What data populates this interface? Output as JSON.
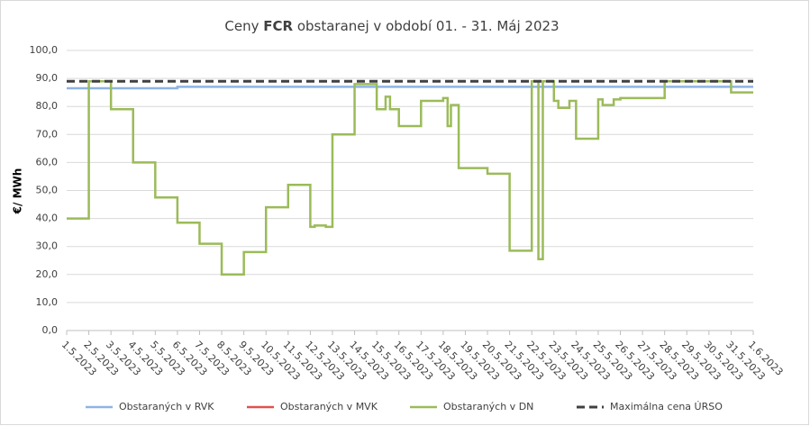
{
  "chart_data": {
    "type": "line",
    "title": [
      "Ceny ",
      "FCR",
      " obstaranej v období 01. - 31. Máj 2023"
    ],
    "ylabel": "€/ MWh",
    "xlim": [
      0,
      31
    ],
    "xticks": [
      {
        "value": 0,
        "label": "1.5.2023"
      },
      {
        "value": 1,
        "label": "2.5.2023"
      },
      {
        "value": 2,
        "label": "3.5.2023"
      },
      {
        "value": 3,
        "label": "4.5.2023"
      },
      {
        "value": 4,
        "label": "5.5.2023"
      },
      {
        "value": 5,
        "label": "6.5.2023"
      },
      {
        "value": 6,
        "label": "7.5.2023"
      },
      {
        "value": 7,
        "label": "8.5.2023"
      },
      {
        "value": 8,
        "label": "9.5.2023"
      },
      {
        "value": 9,
        "label": "10.5.2023"
      },
      {
        "value": 10,
        "label": "11.5.2023"
      },
      {
        "value": 11,
        "label": "12.5.2023"
      },
      {
        "value": 12,
        "label": "13.5.2023"
      },
      {
        "value": 13,
        "label": "14.5.2023"
      },
      {
        "value": 14,
        "label": "15.5.2023"
      },
      {
        "value": 15,
        "label": "16.5.2023"
      },
      {
        "value": 16,
        "label": "17.5.2023"
      },
      {
        "value": 17,
        "label": "18.5.2023"
      },
      {
        "value": 18,
        "label": "19.5.2023"
      },
      {
        "value": 19,
        "label": "20.5.2023"
      },
      {
        "value": 20,
        "label": "21.5.2023"
      },
      {
        "value": 21,
        "label": "22.5.2023"
      },
      {
        "value": 22,
        "label": "23.5.2023"
      },
      {
        "value": 23,
        "label": "24.5.2023"
      },
      {
        "value": 24,
        "label": "25.5.2023"
      },
      {
        "value": 25,
        "label": "26.5.2023"
      },
      {
        "value": 26,
        "label": "27.5.2023"
      },
      {
        "value": 27,
        "label": "28.5.2023"
      },
      {
        "value": 28,
        "label": "29.5.2023"
      },
      {
        "value": 29,
        "label": "30.5.2023"
      },
      {
        "value": 30,
        "label": "31.5.2023"
      },
      {
        "value": 31,
        "label": "1.6.2023"
      }
    ],
    "ylim": [
      0,
      100
    ],
    "yticks": [
      {
        "value": 0,
        "label": "0,0"
      },
      {
        "value": 10,
        "label": "10,0"
      },
      {
        "value": 20,
        "label": "20,0"
      },
      {
        "value": 30,
        "label": "30,0"
      },
      {
        "value": 40,
        "label": "40,0"
      },
      {
        "value": 50,
        "label": "50,0"
      },
      {
        "value": 60,
        "label": "60,0"
      },
      {
        "value": 70,
        "label": "70,0"
      },
      {
        "value": 80,
        "label": "80,0"
      },
      {
        "value": 90,
        "label": "90,0"
      },
      {
        "value": 100,
        "label": "100,0"
      }
    ],
    "grid": true,
    "legend": "bottom",
    "series": [
      {
        "name": "Obstaraných v RVK",
        "color": "#8eb4e3",
        "linestyle": "solid",
        "x": [
          0,
          5,
          5,
          31
        ],
        "values": [
          86.5,
          86.5,
          87,
          87
        ]
      },
      {
        "name": "Obstaraných v MVK",
        "color": "#e0524e",
        "linestyle": "solid",
        "x": [],
        "values": []
      },
      {
        "name": "Obstaraných v DN",
        "color": "#9bbb59",
        "linestyle": "solid",
        "x": [
          0,
          1,
          1,
          2,
          2,
          3,
          3,
          4,
          4,
          5,
          5,
          6,
          6,
          7,
          7,
          8,
          8,
          9,
          9,
          10,
          10,
          11,
          11,
          11.2,
          11.2,
          11.7,
          11.7,
          12,
          12,
          13,
          13,
          14,
          14,
          14.4,
          14.4,
          14.6,
          14.6,
          15,
          15,
          16,
          16,
          17,
          17,
          17.2,
          17.2,
          17.35,
          17.35,
          17.7,
          17.7,
          19,
          19,
          20,
          20,
          21,
          21,
          21.3,
          21.3,
          21.5,
          21.5,
          22,
          22,
          22.2,
          22.2,
          22.7,
          22.7,
          23,
          23,
          24,
          24,
          24.2,
          24.2,
          24.7,
          24.7,
          25,
          25,
          27,
          27,
          30,
          30,
          31
        ],
        "values": [
          40,
          40,
          89,
          89,
          79,
          79,
          60,
          60,
          47.5,
          47.5,
          38.5,
          38.5,
          31,
          31,
          20,
          20,
          28,
          28,
          44,
          44,
          52,
          52,
          37,
          37,
          37.5,
          37.5,
          37,
          37,
          70,
          70,
          88,
          88,
          79,
          79,
          83.5,
          83.5,
          79,
          79,
          73,
          73,
          82,
          82,
          83,
          83,
          73,
          73,
          80.5,
          80.5,
          58,
          58,
          56,
          56,
          28.5,
          28.5,
          89,
          89,
          25.5,
          25.5,
          89,
          89,
          82,
          82,
          79.5,
          79.5,
          82,
          82,
          68.5,
          68.5,
          82.5,
          82.5,
          80.5,
          80.5,
          82.5,
          82.5,
          83,
          83,
          89,
          89,
          85,
          85
        ]
      },
      {
        "name": "Maximálna cena ÚRSO",
        "color": "#404040",
        "linestyle": "dashed",
        "x": [
          0,
          31
        ],
        "values": [
          89,
          89
        ]
      }
    ]
  }
}
